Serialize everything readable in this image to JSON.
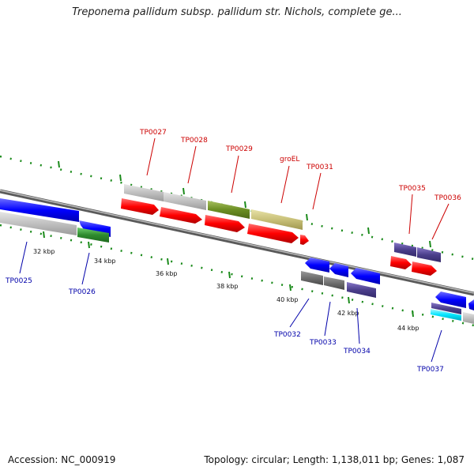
{
  "title": "Treponema pallidum subsp. pallidum str. Nichols, complete ge...",
  "accession": "Accession: NC_000919",
  "topology": "Topology: circular; Length: 1,138,011 bp; Genes: 1,087",
  "scale_ticks": [
    "32 kbp",
    "34 kbp",
    "36 kbp",
    "38 kbp",
    "40 kbp",
    "42 kbp",
    "44 kbp"
  ],
  "forward_genes": [
    "TP0027",
    "TP0028",
    "TP0029",
    "groEL",
    "TP0031",
    "TP0035",
    "TP0036"
  ],
  "reverse_genes": [
    "TP0025",
    "TP0026",
    "TP0032",
    "TP0033",
    "TP0034",
    "TP0037"
  ],
  "colors": {
    "forward_label": "#cc0000",
    "reverse_label": "#0000aa",
    "cds_forward": "#ff0000",
    "cds_reverse": "#0000ff",
    "gene_gray": "#c0c0c0",
    "green": "#2e8b2e",
    "olive": "#6b8e23",
    "khaki": "#c8c078",
    "slate": "#4b3f8c",
    "dark_gray": "#6f6f6f",
    "cyan": "#00e5ff"
  }
}
